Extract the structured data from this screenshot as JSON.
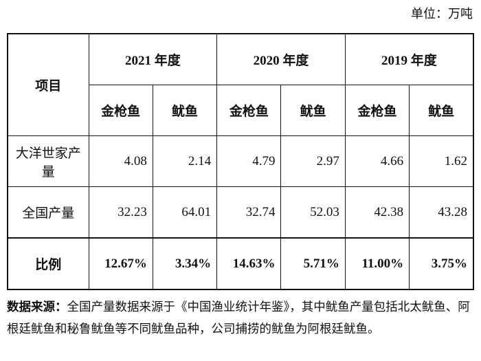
{
  "unit": "单位：万吨",
  "table": {
    "header": {
      "item": "项目",
      "years": [
        "2021 年度",
        "2020 年度",
        "2019 年度"
      ],
      "species": [
        "金枪鱼",
        "鱿鱼",
        "金枪鱼",
        "鱿鱼",
        "金枪鱼",
        "鱿鱼"
      ]
    },
    "rows": [
      [
        "大洋世家产量",
        "4.08",
        "2.14",
        "4.79",
        "2.97",
        "4.66",
        "1.62"
      ],
      [
        "全国产量",
        "32.23",
        "64.01",
        "32.74",
        "52.03",
        "42.38",
        "43.28"
      ],
      [
        "比例",
        "12.67%",
        "3.34%",
        "14.63%",
        "5.71%",
        "11.00%",
        "3.75%"
      ]
    ]
  },
  "note": {
    "label": "数据来源：",
    "text": "全国产量数据来源于《中国渔业统计年鉴》，其中鱿鱼产量包括北太鱿鱼、阿根廷鱿鱼和秘鲁鱿鱼等不同鱿鱼品种，公司捕捞的鱿鱼为阿根廷鱿鱼。"
  }
}
